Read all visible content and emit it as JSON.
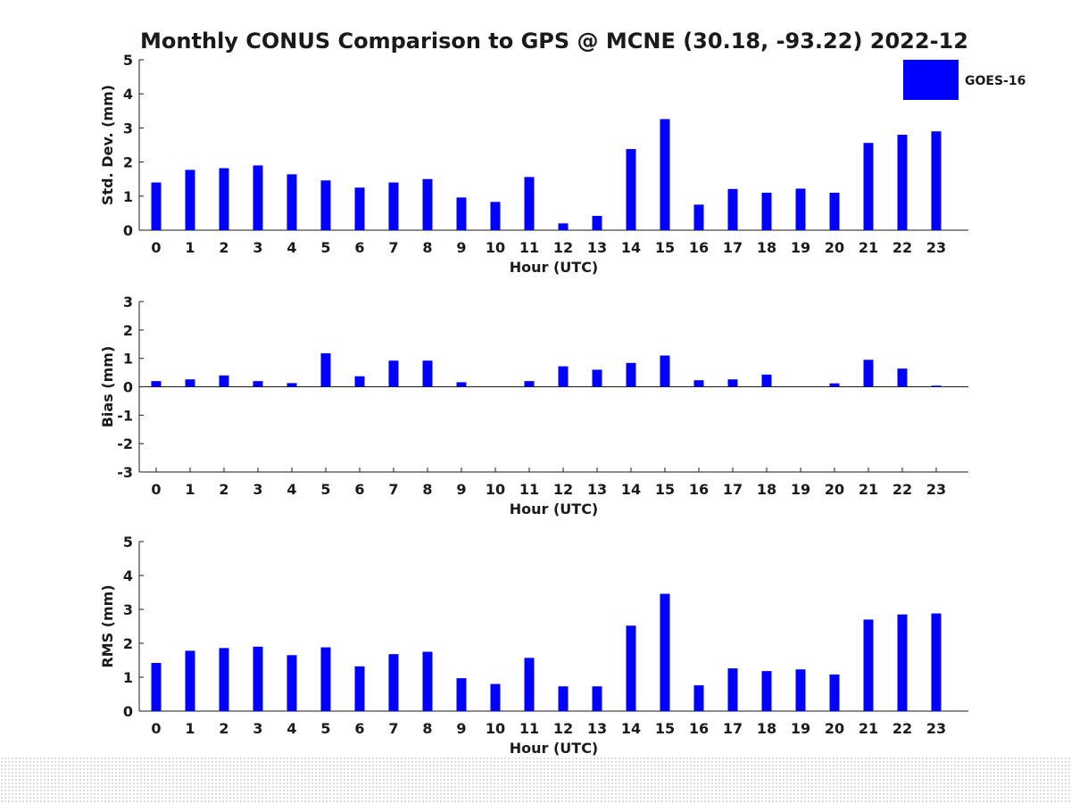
{
  "title": "Monthly CONUS Comparison to GPS @ MCNE (30.18, -93.22) 2022-12",
  "colors": {
    "bar": "#0000ff",
    "axis": "#1a1a1a",
    "text": "#1a1a1a"
  },
  "chart_data": [
    {
      "type": "bar",
      "panel": "std-dev",
      "xlabel": "Hour (UTC)",
      "ylabel": "Std. Dev. (mm)",
      "ylim": [
        0,
        5
      ],
      "yticks": [
        0,
        1,
        2,
        3,
        4,
        5
      ],
      "categories": [
        "0",
        "1",
        "2",
        "3",
        "4",
        "5",
        "6",
        "7",
        "8",
        "9",
        "10",
        "11",
        "12",
        "13",
        "14",
        "15",
        "16",
        "17",
        "18",
        "19",
        "20",
        "21",
        "22",
        "23"
      ],
      "series": [
        {
          "name": "GOES-16",
          "values": [
            1.4,
            1.77,
            1.82,
            1.9,
            1.64,
            1.46,
            1.25,
            1.4,
            1.5,
            0.96,
            0.83,
            1.56,
            0.2,
            0.42,
            2.38,
            3.26,
            0.75,
            1.21,
            1.1,
            1.22,
            1.1,
            2.56,
            2.8,
            2.9
          ]
        }
      ],
      "legend": "top-right",
      "grid": false
    },
    {
      "type": "bar",
      "panel": "bias",
      "xlabel": "Hour (UTC)",
      "ylabel": "Bias (mm)",
      "ylim": [
        -3,
        3
      ],
      "yticks": [
        -3,
        -2,
        -1,
        0,
        1,
        2,
        3
      ],
      "categories": [
        "0",
        "1",
        "2",
        "3",
        "4",
        "5",
        "6",
        "7",
        "8",
        "9",
        "10",
        "11",
        "12",
        "13",
        "14",
        "15",
        "16",
        "17",
        "18",
        "19",
        "20",
        "21",
        "22",
        "23"
      ],
      "series": [
        {
          "name": "GOES-16",
          "values": [
            0.2,
            0.26,
            0.4,
            0.2,
            0.13,
            1.18,
            0.37,
            0.92,
            0.92,
            0.16,
            0.0,
            0.2,
            0.72,
            0.6,
            0.84,
            1.1,
            0.23,
            0.26,
            0.43,
            0.0,
            0.12,
            0.95,
            0.64,
            0.04
          ]
        }
      ],
      "grid": false
    },
    {
      "type": "bar",
      "panel": "rms",
      "xlabel": "Hour (UTC)",
      "ylabel": "RMS (mm)",
      "ylim": [
        0,
        5
      ],
      "yticks": [
        0,
        1,
        2,
        3,
        4,
        5
      ],
      "categories": [
        "0",
        "1",
        "2",
        "3",
        "4",
        "5",
        "6",
        "7",
        "8",
        "9",
        "10",
        "11",
        "12",
        "13",
        "14",
        "15",
        "16",
        "17",
        "18",
        "19",
        "20",
        "21",
        "22",
        "23"
      ],
      "series": [
        {
          "name": "GOES-16",
          "values": [
            1.42,
            1.78,
            1.86,
            1.9,
            1.65,
            1.88,
            1.32,
            1.68,
            1.75,
            0.97,
            0.8,
            1.57,
            0.73,
            0.73,
            2.52,
            3.46,
            0.76,
            1.26,
            1.18,
            1.23,
            1.08,
            2.7,
            2.85,
            2.88
          ]
        }
      ],
      "grid": false
    }
  ]
}
